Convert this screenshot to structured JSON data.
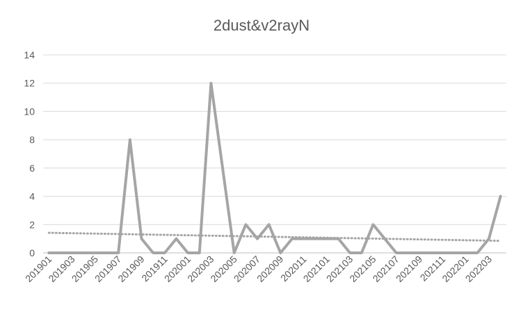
{
  "chart_data": {
    "type": "line",
    "title": "2dust&v2rayN",
    "xlabel": "",
    "ylabel": "",
    "ylim": [
      0,
      14
    ],
    "yticks": [
      0,
      2,
      4,
      6,
      8,
      10,
      12,
      14
    ],
    "grid": true,
    "legend": "none",
    "x": [
      "201901",
      "201902",
      "201903",
      "201904",
      "201905",
      "201906",
      "201907",
      "201908",
      "201909",
      "201910",
      "201911",
      "201912",
      "202001",
      "202002",
      "202003",
      "202004",
      "202005",
      "202006",
      "202007",
      "202008",
      "202009",
      "202010",
      "202011",
      "202012",
      "202101",
      "202102",
      "202103",
      "202104",
      "202105",
      "202106",
      "202107",
      "202108",
      "202109",
      "202110",
      "202111",
      "202112",
      "202201",
      "202202",
      "202203",
      "202204"
    ],
    "xtick_labels": [
      "201901",
      "201903",
      "201905",
      "201907",
      "201909",
      "201911",
      "202001",
      "202003",
      "202005",
      "202007",
      "202009",
      "202011",
      "202101",
      "202103",
      "202105",
      "202107",
      "202109",
      "202111",
      "202201",
      "202203"
    ],
    "series": [
      {
        "values": [
          0,
          0,
          0,
          0,
          0,
          0,
          0,
          8,
          1,
          0,
          0,
          1,
          0,
          0,
          12,
          6,
          0,
          2,
          1,
          2,
          0,
          1,
          1,
          1,
          1,
          1,
          0,
          0,
          2,
          1,
          0,
          0,
          0,
          0,
          0,
          0,
          0,
          0,
          1,
          4
        ],
        "color": "#a5a5a5"
      }
    ],
    "trendline": {
      "type": "linear",
      "start": 1.42,
      "end": 0.85,
      "color": "#a5a5a5",
      "style": "dotted"
    }
  }
}
